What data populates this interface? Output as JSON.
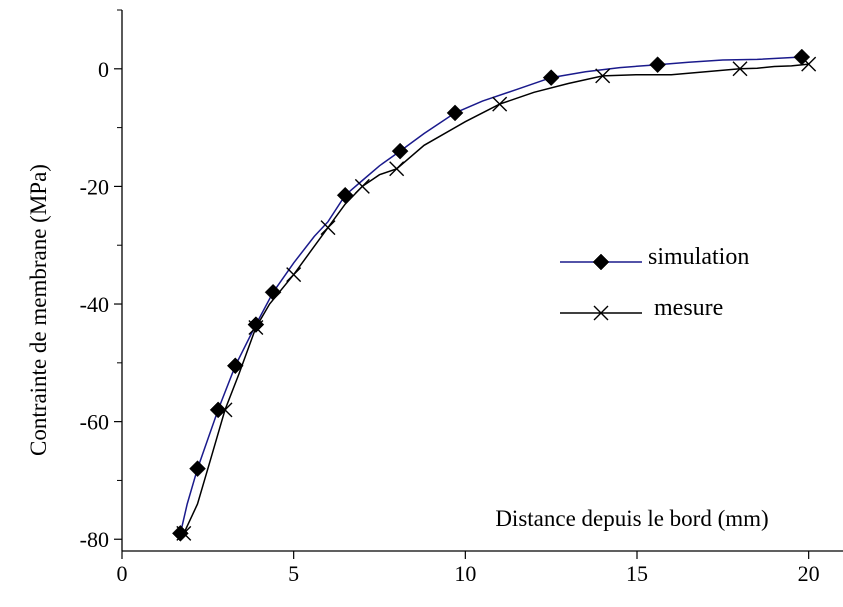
{
  "chart_data": {
    "type": "line",
    "xlabel": "Distance depuis le bord (mm)",
    "ylabel": "Contrainte de membrane (MPa)",
    "xlim": [
      0,
      21
    ],
    "ylim": [
      -82,
      10
    ],
    "xticks": [
      "0",
      "5",
      "10",
      "15",
      "20"
    ],
    "yticks": [
      "0",
      "-20",
      "-40",
      "-60",
      "-80"
    ],
    "legend_position": "center-right",
    "grid": false,
    "series": [
      {
        "name": "simulation",
        "color": "#1a1a8c",
        "marker": "diamond",
        "line": [
          [
            1.7,
            -79
          ],
          [
            1.9,
            -74
          ],
          [
            2.2,
            -68
          ],
          [
            2.5,
            -63
          ],
          [
            2.8,
            -58
          ],
          [
            3.3,
            -50.5
          ],
          [
            3.9,
            -43.5
          ],
          [
            4.4,
            -38
          ],
          [
            5.0,
            -33
          ],
          [
            5.6,
            -28.5
          ],
          [
            6.0,
            -26
          ],
          [
            6.5,
            -21.5
          ],
          [
            7.0,
            -19
          ],
          [
            7.5,
            -16.5
          ],
          [
            8.1,
            -14
          ],
          [
            8.8,
            -11
          ],
          [
            9.7,
            -7.5
          ],
          [
            10.5,
            -5.5
          ],
          [
            11.5,
            -3.5
          ],
          [
            12.5,
            -1.5
          ],
          [
            13.5,
            -0.5
          ],
          [
            14.5,
            0.2
          ],
          [
            15.6,
            0.7
          ],
          [
            16.5,
            1.1
          ],
          [
            17.5,
            1.5
          ],
          [
            18.5,
            1.6
          ],
          [
            19.8,
            2
          ]
        ],
        "markers": [
          [
            1.7,
            -79
          ],
          [
            2.2,
            -68
          ],
          [
            2.8,
            -58
          ],
          [
            3.3,
            -50.5
          ],
          [
            3.9,
            -43.5
          ],
          [
            4.4,
            -38
          ],
          [
            6.5,
            -21.5
          ],
          [
            8.1,
            -14
          ],
          [
            9.7,
            -7.5
          ],
          [
            12.5,
            -1.5
          ],
          [
            15.6,
            0.7
          ],
          [
            19.8,
            2
          ]
        ]
      },
      {
        "name": "mesure",
        "color": "#000000",
        "marker": "x",
        "line": [
          [
            1.8,
            -79
          ],
          [
            2.2,
            -74
          ],
          [
            2.6,
            -66
          ],
          [
            3.0,
            -58
          ],
          [
            3.4,
            -52
          ],
          [
            3.9,
            -44
          ],
          [
            4.3,
            -40
          ],
          [
            5.0,
            -35
          ],
          [
            5.5,
            -31
          ],
          [
            6.0,
            -27
          ],
          [
            6.5,
            -23
          ],
          [
            7.0,
            -20
          ],
          [
            7.5,
            -18
          ],
          [
            8.0,
            -17
          ],
          [
            8.8,
            -13
          ],
          [
            10.0,
            -9
          ],
          [
            11.0,
            -6
          ],
          [
            12.0,
            -4
          ],
          [
            13.0,
            -2.5
          ],
          [
            14.0,
            -1.2
          ],
          [
            15.0,
            -1
          ],
          [
            16.0,
            -1
          ],
          [
            17.0,
            -0.5
          ],
          [
            18.0,
            0
          ],
          [
            18.5,
            0.1
          ],
          [
            19.0,
            0.4
          ],
          [
            19.5,
            0.5
          ],
          [
            20.0,
            0.8
          ]
        ],
        "markers": [
          [
            1.8,
            -79
          ],
          [
            3.0,
            -58
          ],
          [
            3.9,
            -44
          ],
          [
            5.0,
            -35
          ],
          [
            6.0,
            -27
          ],
          [
            7.0,
            -20
          ],
          [
            8.0,
            -17
          ],
          [
            11.0,
            -6
          ],
          [
            14.0,
            -1.2
          ],
          [
            18.0,
            0
          ],
          [
            20.0,
            0.8
          ]
        ]
      }
    ]
  }
}
